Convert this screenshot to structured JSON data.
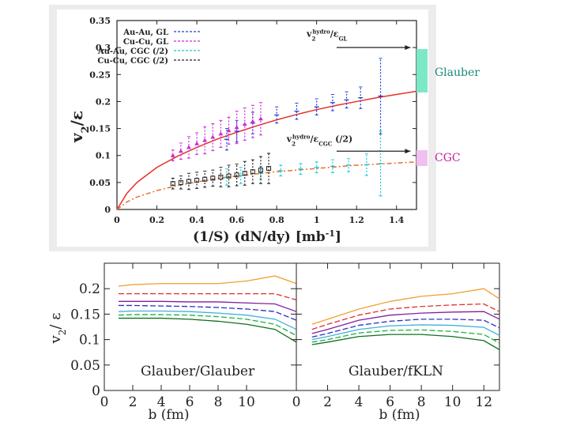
{
  "chart_data": [
    {
      "type": "scatter",
      "title": "",
      "xlabel": "(1/S) (dN/dy)  [mb",
      "xlabel_sup": "-1",
      "xlabel_end": "]",
      "ylabel": "v",
      "ylabel_sub": "2",
      "ylabel_end": "/ε",
      "xlim": [
        0,
        1.5
      ],
      "ylim": [
        0,
        0.35
      ],
      "xticks": [
        0,
        0.2,
        0.4,
        0.6,
        0.8,
        1,
        1.2,
        1.4
      ],
      "xtick_labels": [
        "0",
        "0.2",
        "0.4",
        "0.6",
        "0.8",
        "1",
        "1.2",
        "1.4"
      ],
      "yticks": [
        0,
        0.05,
        0.1,
        0.15,
        0.2,
        0.25,
        0.3,
        0.35
      ],
      "ytick_labels": [
        "0",
        "0.05",
        "0.1",
        "0.15",
        "0.2",
        "0.25",
        "0.3",
        "0.35"
      ],
      "legend": {
        "placement": "top-left",
        "entries": [
          "Au-Au, GL",
          "Cu-Cu, GL",
          "Au-Au, CGC (/2)",
          "Cu-Cu, CGC (/2)"
        ]
      },
      "series": [
        {
          "name": "Au-Au, GL",
          "color": "#1a3fd8",
          "marker": "plus",
          "x": [
            0.55,
            0.6,
            0.68,
            0.8,
            0.9,
            1.0,
            1.08,
            1.15,
            1.22,
            1.32
          ],
          "y": [
            0.13,
            0.145,
            0.16,
            0.175,
            0.182,
            0.19,
            0.198,
            0.203,
            0.207,
            0.21
          ],
          "err": [
            0.02,
            0.02,
            0.02,
            0.015,
            0.015,
            0.015,
            0.015,
            0.015,
            0.02,
            0.07
          ]
        },
        {
          "name": "Cu-Cu, GL",
          "color": "#cc2bd6",
          "marker": "triangle",
          "x": [
            0.28,
            0.32,
            0.36,
            0.4,
            0.44,
            0.48,
            0.52,
            0.56,
            0.6,
            0.64,
            0.68,
            0.72
          ],
          "y": [
            0.1,
            0.108,
            0.115,
            0.122,
            0.128,
            0.134,
            0.14,
            0.146,
            0.152,
            0.158,
            0.163,
            0.168
          ],
          "err": [
            0.01,
            0.015,
            0.02,
            0.02,
            0.025,
            0.025,
            0.025,
            0.025,
            0.03,
            0.03,
            0.03,
            0.03
          ]
        },
        {
          "name": "Au-Au, CGC (/2)",
          "color": "#1fc6d6",
          "marker": "x",
          "x": [
            0.55,
            0.62,
            0.72,
            0.82,
            0.92,
            1.0,
            1.08,
            1.16,
            1.25,
            1.32
          ],
          "y": [
            0.06,
            0.063,
            0.068,
            0.072,
            0.075,
            0.078,
            0.08,
            0.082,
            0.083,
            0.085
          ],
          "err": [
            0.015,
            0.015,
            0.012,
            0.01,
            0.01,
            0.01,
            0.012,
            0.012,
            0.02,
            0.06
          ]
        },
        {
          "name": "Cu-Cu, CGC (/2)",
          "color": "#222222",
          "marker": "square",
          "x": [
            0.28,
            0.32,
            0.36,
            0.4,
            0.44,
            0.48,
            0.52,
            0.56,
            0.6,
            0.64,
            0.68,
            0.72,
            0.76
          ],
          "y": [
            0.048,
            0.05,
            0.052,
            0.054,
            0.056,
            0.058,
            0.06,
            0.062,
            0.064,
            0.067,
            0.07,
            0.073,
            0.076
          ],
          "err": [
            0.01,
            0.012,
            0.015,
            0.015,
            0.015,
            0.015,
            0.018,
            0.02,
            0.02,
            0.022,
            0.022,
            0.025,
            0.028
          ]
        }
      ],
      "curves": [
        {
          "name": "Glauber hydro fit",
          "color": "#e8312a",
          "style": "solid",
          "x": [
            0,
            0.05,
            0.1,
            0.2,
            0.3,
            0.4,
            0.5,
            0.6,
            0.7,
            0.8,
            0.9,
            1.0,
            1.1,
            1.2,
            1.3,
            1.4,
            1.5
          ],
          "y": [
            0,
            0.03,
            0.05,
            0.078,
            0.098,
            0.115,
            0.13,
            0.143,
            0.155,
            0.166,
            0.176,
            0.185,
            0.193,
            0.2,
            0.207,
            0.213,
            0.219
          ]
        },
        {
          "name": "CGC hydro fit",
          "color": "#e8702a",
          "style": "dashdot",
          "x": [
            0,
            0.05,
            0.1,
            0.2,
            0.3,
            0.4,
            0.5,
            0.6,
            0.7,
            0.8,
            0.9,
            1.0,
            1.1,
            1.2,
            1.3,
            1.4,
            1.5
          ],
          "y": [
            0,
            0.014,
            0.023,
            0.035,
            0.044,
            0.051,
            0.057,
            0.062,
            0.066,
            0.07,
            0.073,
            0.076,
            0.079,
            0.082,
            0.084,
            0.086,
            0.088
          ]
        }
      ],
      "annotations": [
        {
          "text": "v",
          "sub": "2",
          "sup": "hydro",
          "tail": "/ε",
          "tail_sub": "GL",
          "x": 0.95,
          "y": 0.32
        },
        {
          "text": "v",
          "sub": "2",
          "sup": "hydro",
          "tail": "/ε",
          "tail_sub": "CGC",
          "tail_end": " (/2)",
          "x": 0.85,
          "y": 0.125
        }
      ],
      "arrow_targets": [
        {
          "name": "Glauber",
          "y": 0.3,
          "x_from": 1.1,
          "x_to": 1.47
        },
        {
          "name": "CGC",
          "y": 0.108,
          "x_from": 1.1,
          "x_to": 1.47
        }
      ]
    },
    {
      "type": "line",
      "ylabel": "v",
      "ylabel_sub": "2",
      "ylabel_end": "/ ε",
      "ylim": [
        0,
        0.25
      ],
      "yticks": [
        0,
        0.05,
        0.1,
        0.15,
        0.2
      ],
      "ytick_labels": [
        "0",
        "0.05",
        "0.1",
        "0.15",
        "0.2"
      ],
      "panels": [
        {
          "label": "Glauber/Glauber",
          "xlabel": "b (fm)",
          "xlim": [
            0,
            13.5
          ],
          "xticks": [
            0,
            2,
            4,
            6,
            8,
            10
          ],
          "xtick_labels": [
            "0",
            "2",
            "4",
            "6",
            "8",
            "10"
          ]
        },
        {
          "label": "Glauber/fKLN",
          "xlabel": "b (fm)",
          "xlim": [
            0,
            13
          ],
          "xticks": [
            0,
            2,
            4,
            6,
            8,
            10,
            12
          ],
          "xtick_labels": [
            "0",
            "2",
            "4",
            "6",
            "8",
            "10",
            "12"
          ]
        }
      ],
      "series_colors": [
        "#f0a030",
        "#e03030",
        "#8020a0",
        "#3030c0",
        "#40b0e0",
        "#20b040",
        "#107020"
      ],
      "panel_a_x": [
        1,
        2,
        4,
        6,
        8,
        10,
        12,
        13.5
      ],
      "panel_a_series": [
        [
          0.205,
          0.208,
          0.21,
          0.21,
          0.21,
          0.215,
          0.225,
          0.21
        ],
        [
          0.19,
          0.19,
          0.19,
          0.19,
          0.19,
          0.19,
          0.19,
          0.178
        ],
        [
          0.175,
          0.175,
          0.175,
          0.174,
          0.174,
          0.172,
          0.17,
          0.155
        ],
        [
          0.167,
          0.167,
          0.166,
          0.165,
          0.163,
          0.16,
          0.155,
          0.138
        ],
        [
          0.155,
          0.156,
          0.156,
          0.155,
          0.152,
          0.148,
          0.14,
          0.12
        ],
        [
          0.148,
          0.149,
          0.149,
          0.148,
          0.145,
          0.14,
          0.13,
          0.108
        ],
        [
          0.142,
          0.142,
          0.142,
          0.14,
          0.136,
          0.13,
          0.12,
          0.095
        ]
      ],
      "panel_b_x": [
        1,
        2,
        4,
        6,
        8,
        10,
        12,
        13
      ],
      "panel_b_series": [
        [
          0.13,
          0.14,
          0.16,
          0.175,
          0.185,
          0.19,
          0.2,
          0.18
        ],
        [
          0.12,
          0.13,
          0.148,
          0.16,
          0.165,
          0.168,
          0.17,
          0.155
        ],
        [
          0.112,
          0.12,
          0.138,
          0.148,
          0.152,
          0.154,
          0.155,
          0.14
        ],
        [
          0.105,
          0.112,
          0.128,
          0.136,
          0.14,
          0.14,
          0.138,
          0.123
        ],
        [
          0.1,
          0.106,
          0.12,
          0.127,
          0.129,
          0.128,
          0.124,
          0.108
        ],
        [
          0.095,
          0.1,
          0.113,
          0.118,
          0.119,
          0.116,
          0.11,
          0.093
        ],
        [
          0.09,
          0.095,
          0.106,
          0.11,
          0.11,
          0.106,
          0.098,
          0.08
        ]
      ]
    }
  ],
  "legend_side": {
    "glauber_label": "Glauber",
    "glauber_color": "#7de8c8",
    "cgc_label": "CGC",
    "cgc_color": "#f0c0f0"
  }
}
